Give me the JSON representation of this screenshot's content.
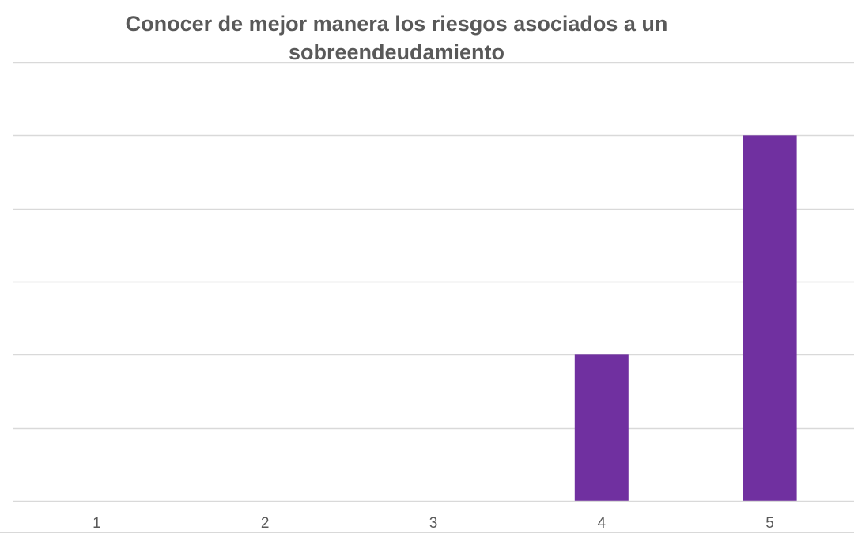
{
  "chart_data": {
    "type": "bar",
    "title_lines": [
      "Conocer de mejor manera los riesgos asociados a un",
      "sobreendeudamiento"
    ],
    "categories": [
      "1",
      "2",
      "3",
      "4",
      "5"
    ],
    "values": [
      0,
      0,
      0,
      2,
      5
    ],
    "ylim": [
      0,
      6
    ],
    "ytick_step": 1,
    "show_y_tick_labels": false,
    "grid": true,
    "legend": "none",
    "xlabel": "",
    "ylabel": ""
  },
  "colors": {
    "bar": "#7030A0",
    "grid": "#d9d9d9",
    "axis": "#d9d9d9",
    "text": "#595959"
  }
}
